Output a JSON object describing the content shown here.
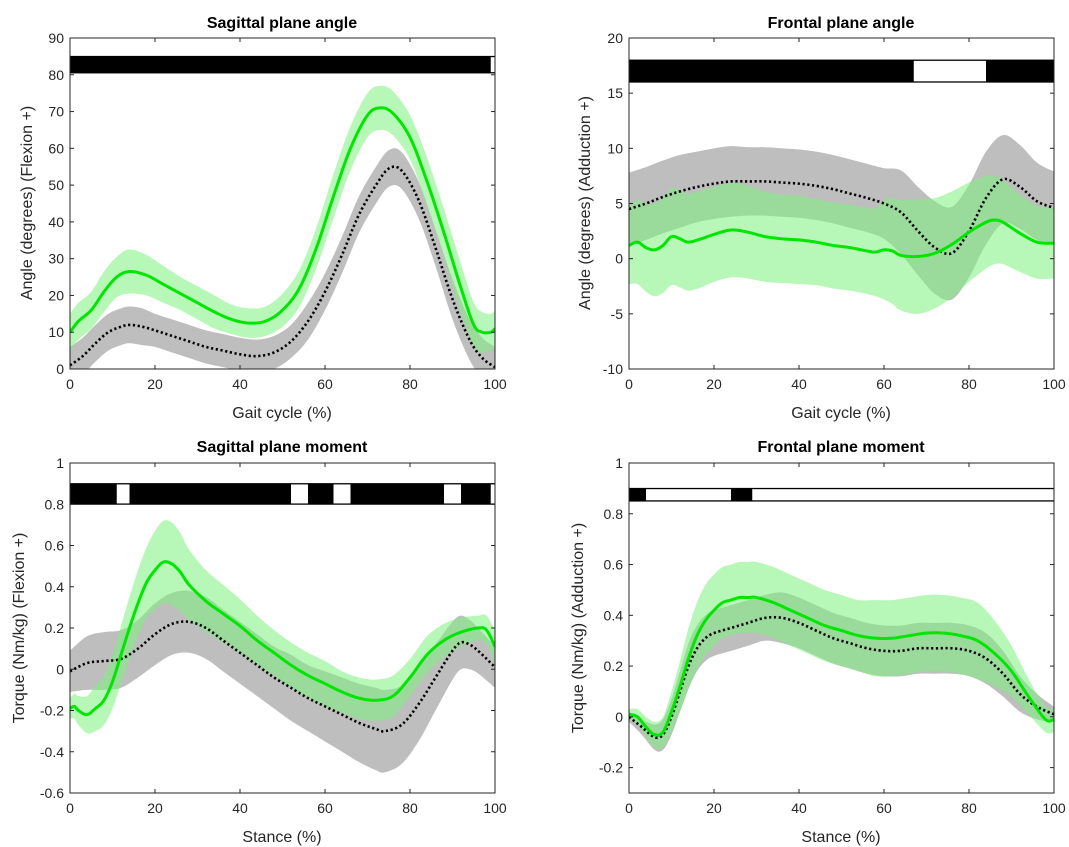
{
  "colors": {
    "green_line": "#00e600",
    "green_band": "#7cf07c",
    "gray_band": "#9b9b9b",
    "dotted_line": "#000000",
    "sig_fill": "#000000"
  },
  "chart_data": [
    {
      "type": "line",
      "title": "Sagittal plane angle",
      "xlabel": "Gait cycle (%)",
      "ylabel": "Angle (degrees)  (Flexion +)",
      "xlim": [
        0,
        100
      ],
      "ylim": [
        0,
        90
      ],
      "xticks": [
        0,
        20,
        40,
        60,
        80,
        100
      ],
      "yticks": [
        0,
        10,
        20,
        30,
        40,
        50,
        60,
        70,
        80,
        90
      ],
      "significance_bar": {
        "y_range": [
          80.5,
          85
        ],
        "white_segments": [
          [
            99,
            100
          ]
        ]
      },
      "series": [
        {
          "style": "solid-green",
          "x": [
            0,
            2,
            5,
            8,
            11,
            14,
            18,
            22,
            26,
            30,
            34,
            38,
            42,
            46,
            50,
            54,
            58,
            62,
            66,
            70,
            73,
            76,
            80,
            84,
            88,
            92,
            95,
            97,
            99,
            100
          ],
          "y": [
            10,
            13,
            16,
            21,
            25,
            26.5,
            25.5,
            23,
            20.5,
            18,
            15.5,
            13.5,
            12.5,
            13,
            16,
            22,
            33,
            47,
            60,
            69,
            71,
            69.5,
            63,
            51,
            37,
            22,
            12,
            10,
            10,
            11
          ],
          "band": [
            5,
            5,
            5,
            5.5,
            5.5,
            6,
            5.5,
            5,
            4.5,
            4.5,
            4.5,
            4,
            4,
            4,
            4.5,
            5,
            5.5,
            6,
            6,
            6,
            6,
            6,
            6,
            6.5,
            6.5,
            6.5,
            6,
            5.5,
            5,
            5
          ]
        },
        {
          "style": "dotted-black",
          "x": [
            0,
            3,
            6,
            9,
            12,
            14,
            17,
            20,
            24,
            28,
            32,
            36,
            40,
            44,
            48,
            52,
            56,
            60,
            64,
            68,
            72,
            75,
            78,
            82,
            86,
            90,
            94,
            97,
            100
          ],
          "y": [
            1,
            3.5,
            7,
            10,
            11.5,
            12,
            11.5,
            10.5,
            9,
            7.5,
            6,
            5,
            4,
            3.5,
            4.5,
            7.5,
            13,
            21,
            31,
            42,
            50,
            54.5,
            54,
            46,
            33,
            19,
            8,
            3,
            0.5
          ],
          "band": [
            5,
            5,
            5,
            5,
            5,
            5,
            5,
            4.5,
            4.5,
            4.5,
            4.5,
            4.5,
            4.5,
            4.5,
            4.5,
            4.5,
            5,
            5,
            5,
            5,
            5,
            5,
            5,
            5,
            5,
            5.5,
            5.5,
            5.5,
            5.5
          ]
        }
      ]
    },
    {
      "type": "line",
      "title": "Frontal plane angle",
      "xlabel": "Gait cycle (%)",
      "ylabel": "Angle (degrees)  (Adduction +)",
      "xlim": [
        0,
        100
      ],
      "ylim": [
        -10,
        20
      ],
      "xticks": [
        0,
        20,
        40,
        60,
        80,
        100
      ],
      "yticks": [
        -10,
        -5,
        0,
        5,
        10,
        15,
        20
      ],
      "significance_bar": {
        "y_range": [
          16,
          18
        ],
        "white_segments": [
          [
            67,
            84
          ]
        ]
      },
      "series": [
        {
          "style": "solid-green",
          "x": [
            0,
            2,
            4,
            6,
            8,
            10,
            12,
            14,
            17,
            20,
            24,
            28,
            32,
            36,
            40,
            44,
            48,
            52,
            56,
            58,
            60,
            62,
            64,
            68,
            72,
            76,
            80,
            84,
            86,
            88,
            92,
            96,
            100
          ],
          "y": [
            1.2,
            1.5,
            1.0,
            0.8,
            1.2,
            2.0,
            1.8,
            1.5,
            1.8,
            2.2,
            2.6,
            2.4,
            2.0,
            1.8,
            1.7,
            1.5,
            1.2,
            1.0,
            0.7,
            0.6,
            0.8,
            0.7,
            0.3,
            0.2,
            0.5,
            1.3,
            2.4,
            3.3,
            3.5,
            3.3,
            2.3,
            1.5,
            1.4
          ],
          "band": [
            3.5,
            3.8,
            4.0,
            4.2,
            4.3,
            4.4,
            4.4,
            4.4,
            4.4,
            4.3,
            4.3,
            4.2,
            4.1,
            4.0,
            4.0,
            3.9,
            3.9,
            3.9,
            3.9,
            4.0,
            4.5,
            4.8,
            5.0,
            5.2,
            5.0,
            4.8,
            4.5,
            4.2,
            4.0,
            3.8,
            3.5,
            3.3,
            3.2
          ]
        },
        {
          "style": "dotted-black",
          "x": [
            0,
            4,
            8,
            12,
            16,
            20,
            24,
            28,
            32,
            36,
            40,
            44,
            48,
            52,
            56,
            60,
            64,
            68,
            72,
            76,
            80,
            84,
            88,
            92,
            96,
            100
          ],
          "y": [
            4.5,
            5.0,
            5.6,
            6.1,
            6.5,
            6.8,
            7.0,
            7.0,
            7.0,
            6.9,
            6.8,
            6.6,
            6.3,
            5.9,
            5.5,
            5.0,
            4.2,
            2.5,
            1.0,
            0.5,
            2.5,
            5.5,
            7.2,
            6.5,
            5.2,
            4.6
          ],
          "band": [
            3.3,
            3.3,
            3.3,
            3.3,
            3.2,
            3.2,
            3.2,
            3.1,
            3.1,
            3.1,
            3.1,
            3.1,
            3.1,
            3.1,
            3.1,
            3.2,
            3.8,
            4.0,
            4.2,
            4.2,
            4.2,
            4.2,
            4.0,
            3.8,
            3.5,
            3.3
          ]
        }
      ]
    },
    {
      "type": "line",
      "title": "Sagittal plane moment",
      "xlabel": "Stance (%)",
      "ylabel": "Torque (Nm/kg)  (Flexion +)",
      "xlim": [
        0,
        100
      ],
      "ylim": [
        -0.6,
        1
      ],
      "xticks": [
        0,
        20,
        40,
        60,
        80,
        100
      ],
      "yticks": [
        -0.6,
        -0.4,
        -0.2,
        0,
        0.2,
        0.4,
        0.6,
        0.8,
        1
      ],
      "significance_bar": {
        "y_range": [
          0.8,
          0.9
        ],
        "white_segments": [
          [
            11,
            14
          ],
          [
            52,
            56
          ],
          [
            62,
            66
          ],
          [
            88,
            92
          ],
          [
            99,
            100
          ]
        ]
      },
      "series": [
        {
          "style": "solid-green",
          "x": [
            0,
            1,
            2,
            4,
            6,
            8,
            10,
            12,
            14,
            16,
            18,
            20,
            22,
            24,
            26,
            28,
            32,
            36,
            40,
            44,
            48,
            52,
            56,
            60,
            64,
            68,
            72,
            76,
            80,
            84,
            88,
            92,
            96,
            98,
            100
          ],
          "y": [
            -0.19,
            -0.18,
            -0.2,
            -0.22,
            -0.19,
            -0.15,
            -0.06,
            0.07,
            0.2,
            0.32,
            0.42,
            0.48,
            0.52,
            0.51,
            0.47,
            0.41,
            0.33,
            0.27,
            0.21,
            0.14,
            0.08,
            0.02,
            -0.03,
            -0.07,
            -0.11,
            -0.14,
            -0.15,
            -0.13,
            -0.04,
            0.07,
            0.14,
            0.18,
            0.2,
            0.19,
            0.11
          ],
          "band": [
            0.05,
            0.06,
            0.07,
            0.09,
            0.11,
            0.12,
            0.13,
            0.14,
            0.15,
            0.16,
            0.17,
            0.19,
            0.2,
            0.2,
            0.19,
            0.17,
            0.15,
            0.14,
            0.13,
            0.12,
            0.11,
            0.11,
            0.11,
            0.11,
            0.1,
            0.1,
            0.1,
            0.1,
            0.09,
            0.09,
            0.08,
            0.07,
            0.06,
            0.07,
            0.08
          ]
        },
        {
          "style": "dotted-black",
          "x": [
            0,
            4,
            8,
            12,
            16,
            20,
            24,
            28,
            32,
            36,
            40,
            44,
            48,
            52,
            56,
            60,
            64,
            68,
            72,
            74,
            78,
            82,
            86,
            90,
            92,
            94,
            96,
            100
          ],
          "y": [
            -0.01,
            0.03,
            0.04,
            0.05,
            0.1,
            0.17,
            0.22,
            0.23,
            0.2,
            0.14,
            0.08,
            0.02,
            -0.04,
            -0.09,
            -0.14,
            -0.18,
            -0.22,
            -0.26,
            -0.29,
            -0.3,
            -0.27,
            -0.17,
            -0.04,
            0.09,
            0.13,
            0.12,
            0.09,
            0.01
          ],
          "band": [
            0.1,
            0.13,
            0.14,
            0.14,
            0.14,
            0.15,
            0.15,
            0.15,
            0.15,
            0.15,
            0.15,
            0.15,
            0.15,
            0.16,
            0.16,
            0.17,
            0.18,
            0.19,
            0.2,
            0.2,
            0.19,
            0.18,
            0.16,
            0.14,
            0.13,
            0.12,
            0.11,
            0.1
          ]
        }
      ]
    },
    {
      "type": "line",
      "title": "Frontal plane moment",
      "xlabel": "Stance (%)",
      "ylabel": "Torque (Nm/kg)  (Adduction +)",
      "xlim": [
        0,
        100
      ],
      "ylim": [
        -0.3,
        1
      ],
      "xticks": [
        0,
        20,
        40,
        60,
        80,
        100
      ],
      "yticks": [
        -0.2,
        0,
        0.2,
        0.4,
        0.6,
        0.8,
        1
      ],
      "significance_bar": {
        "y_range": [
          0.85,
          0.9
        ],
        "white_segments": [
          [
            4,
            24
          ],
          [
            29,
            100
          ]
        ]
      },
      "series": [
        {
          "style": "solid-green",
          "x": [
            0,
            2,
            4,
            6,
            8,
            10,
            12,
            14,
            16,
            18,
            20,
            22,
            24,
            26,
            28,
            30,
            34,
            38,
            42,
            46,
            50,
            54,
            58,
            62,
            66,
            70,
            74,
            78,
            82,
            86,
            90,
            94,
            98,
            100
          ],
          "y": [
            0.01,
            0.0,
            -0.04,
            -0.07,
            -0.06,
            0.02,
            0.12,
            0.23,
            0.32,
            0.38,
            0.42,
            0.45,
            0.46,
            0.47,
            0.47,
            0.47,
            0.45,
            0.42,
            0.39,
            0.36,
            0.34,
            0.32,
            0.31,
            0.31,
            0.32,
            0.33,
            0.33,
            0.32,
            0.3,
            0.25,
            0.18,
            0.08,
            -0.01,
            -0.01
          ],
          "band": [
            0.02,
            0.03,
            0.04,
            0.05,
            0.06,
            0.08,
            0.1,
            0.12,
            0.13,
            0.14,
            0.14,
            0.14,
            0.14,
            0.14,
            0.14,
            0.14,
            0.14,
            0.14,
            0.14,
            0.14,
            0.14,
            0.14,
            0.15,
            0.15,
            0.15,
            0.15,
            0.15,
            0.15,
            0.15,
            0.13,
            0.1,
            0.07,
            0.05,
            0.05
          ]
        },
        {
          "style": "dotted-black",
          "x": [
            0,
            3,
            6,
            8,
            10,
            12,
            14,
            16,
            18,
            20,
            24,
            28,
            32,
            36,
            40,
            44,
            48,
            52,
            56,
            60,
            64,
            68,
            72,
            76,
            80,
            84,
            88,
            92,
            96,
            100
          ],
          "y": [
            0.0,
            -0.04,
            -0.08,
            -0.07,
            0.0,
            0.1,
            0.2,
            0.27,
            0.31,
            0.33,
            0.35,
            0.37,
            0.39,
            0.39,
            0.37,
            0.34,
            0.31,
            0.29,
            0.27,
            0.26,
            0.26,
            0.27,
            0.27,
            0.27,
            0.26,
            0.23,
            0.17,
            0.09,
            0.04,
            0.01
          ],
          "band": [
            0.02,
            0.03,
            0.05,
            0.06,
            0.07,
            0.08,
            0.09,
            0.09,
            0.09,
            0.09,
            0.09,
            0.09,
            0.09,
            0.1,
            0.1,
            0.1,
            0.1,
            0.1,
            0.1,
            0.1,
            0.1,
            0.1,
            0.1,
            0.1,
            0.1,
            0.1,
            0.09,
            0.07,
            0.05,
            0.03
          ]
        }
      ]
    }
  ]
}
